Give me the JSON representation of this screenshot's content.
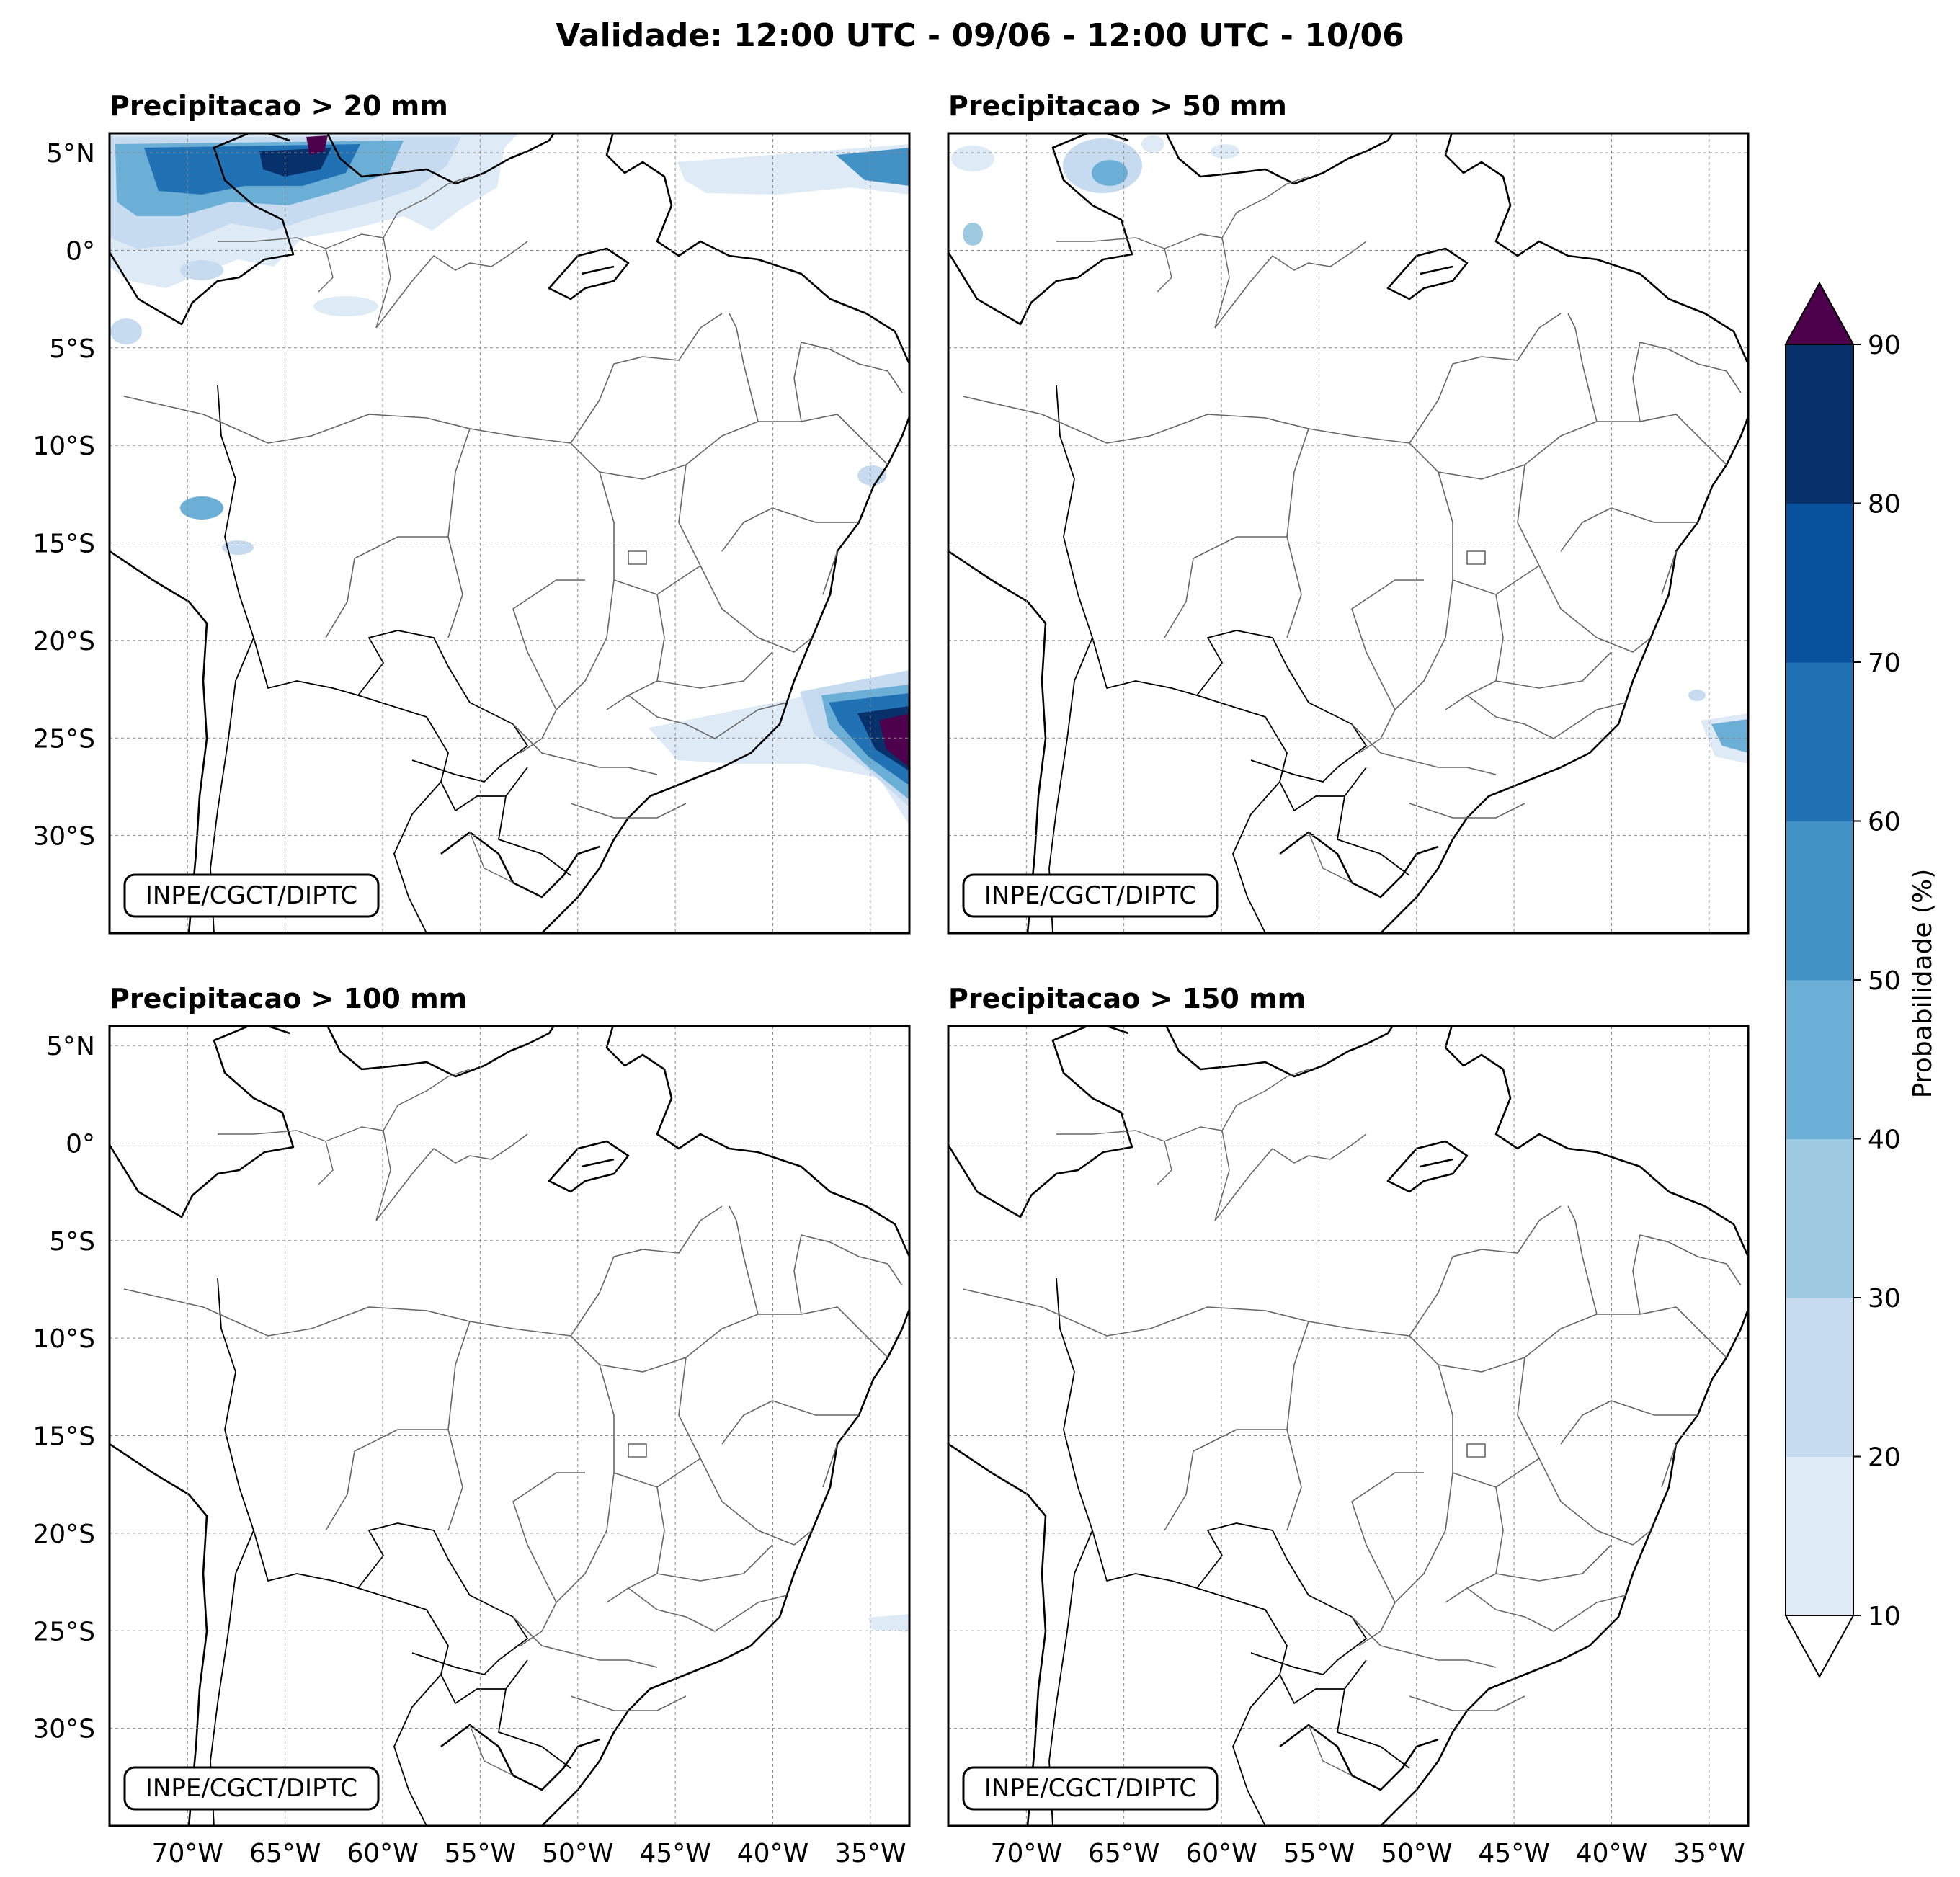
{
  "title": "Validade: 12:00 UTC - 09/06 - 12:00 UTC - 10/06",
  "credit": "INPE/CGCT/DIPTC",
  "panels": [
    {
      "title": "Precipitacao > 20 mm"
    },
    {
      "title": "Precipitacao > 50 mm"
    },
    {
      "title": "Precipitacao > 100 mm"
    },
    {
      "title": "Precipitacao > 150 mm"
    }
  ],
  "lat_ticks": [
    {
      "value": 5,
      "label": "5°N"
    },
    {
      "value": 0,
      "label": "0°"
    },
    {
      "value": -5,
      "label": "5°S"
    },
    {
      "value": -10,
      "label": "10°S"
    },
    {
      "value": -15,
      "label": "15°S"
    },
    {
      "value": -20,
      "label": "20°S"
    },
    {
      "value": -25,
      "label": "25°S"
    },
    {
      "value": -30,
      "label": "30°S"
    }
  ],
  "lon_ticks": [
    {
      "value": -70,
      "label": "70°W"
    },
    {
      "value": -65,
      "label": "65°W"
    },
    {
      "value": -60,
      "label": "60°W"
    },
    {
      "value": -55,
      "label": "55°W"
    },
    {
      "value": -50,
      "label": "50°W"
    },
    {
      "value": -45,
      "label": "45°W"
    },
    {
      "value": -40,
      "label": "40°W"
    },
    {
      "value": -35,
      "label": "35°W"
    }
  ],
  "extent": {
    "lon_min": -74,
    "lon_max": -33,
    "lat_min": -35,
    "lat_max": 6
  },
  "colorbar": {
    "label": "Probabilidade (%)",
    "levels": [
      10,
      20,
      30,
      40,
      50,
      60,
      70,
      80,
      90
    ],
    "colors": [
      "#deebf7",
      "#c6dbef",
      "#9ecae1",
      "#6baed6",
      "#4292c6",
      "#2171b5",
      "#08519c",
      "#08306b"
    ],
    "over_color": "#4d004b",
    "under_color": "#ffffff"
  }
}
